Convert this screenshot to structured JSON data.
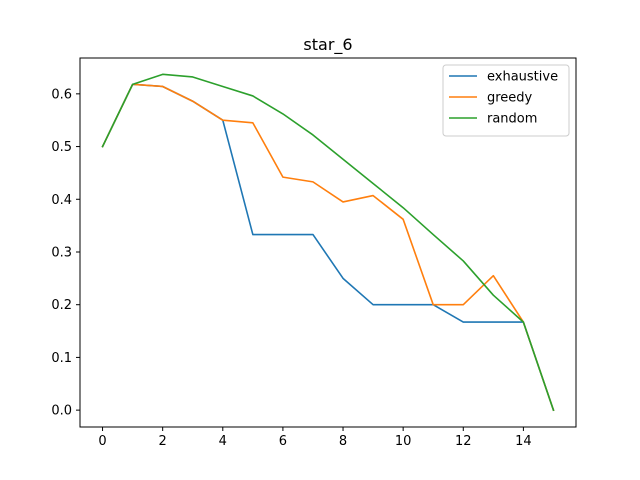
{
  "chart_data": {
    "type": "line",
    "title": "star_6",
    "xlabel": "",
    "ylabel": "",
    "xlim": [
      -0.75,
      15.75
    ],
    "ylim": [
      -0.032,
      0.668
    ],
    "xticks": [
      0,
      2,
      4,
      6,
      8,
      10,
      12,
      14
    ],
    "yticks": [
      0.0,
      0.1,
      0.2,
      0.3,
      0.4,
      0.5,
      0.6
    ],
    "xtick_labels": [
      "0",
      "2",
      "4",
      "6",
      "8",
      "10",
      "12",
      "14"
    ],
    "ytick_labels": [
      "0.0",
      "0.1",
      "0.2",
      "0.3",
      "0.4",
      "0.5",
      "0.6"
    ],
    "grid": false,
    "legend_position": "top-right",
    "x": [
      0,
      1,
      2,
      3,
      4,
      5,
      6,
      7,
      8,
      9,
      10,
      11,
      12,
      13,
      14,
      15
    ],
    "series": [
      {
        "name": "exhaustive",
        "color": "#1f77b4",
        "values": [
          0.5,
          0.618,
          0.614,
          0.586,
          0.55,
          0.333,
          0.333,
          0.333,
          0.25,
          0.2,
          0.2,
          0.2,
          0.167,
          0.167,
          0.167,
          0.0
        ]
      },
      {
        "name": "greedy",
        "color": "#ff7f0e",
        "values": [
          0.5,
          0.618,
          0.614,
          0.586,
          0.55,
          0.545,
          0.442,
          0.433,
          0.395,
          0.407,
          0.362,
          0.2,
          0.2,
          0.255,
          0.167,
          0.0
        ]
      },
      {
        "name": "random",
        "color": "#2ca02c",
        "values": [
          0.5,
          0.618,
          0.637,
          0.632,
          0.614,
          0.596,
          0.562,
          0.522,
          0.476,
          0.43,
          0.384,
          0.333,
          0.283,
          0.218,
          0.167,
          0.0
        ]
      }
    ]
  }
}
